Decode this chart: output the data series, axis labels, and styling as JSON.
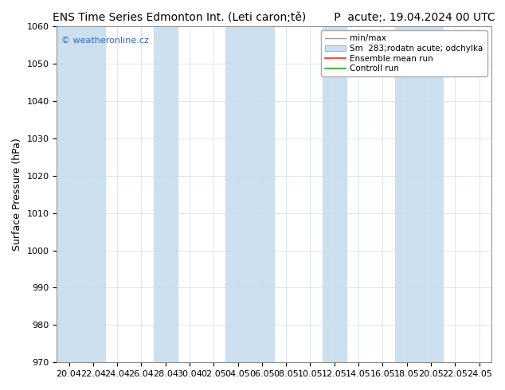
{
  "title": "ENS Time Series Edmonton Int. (Leti caron;tě)        P  acute;. 19.04.2024 00 UTC",
  "ylabel": "Surface Pressure (hPa)",
  "ylim": [
    970,
    1060
  ],
  "yticks": [
    970,
    980,
    990,
    1000,
    1010,
    1020,
    1030,
    1040,
    1050,
    1060
  ],
  "x_labels": [
    "20.04",
    "22.04",
    "24.04",
    "26.04",
    "28.04",
    "30.04",
    "02.05",
    "04.05",
    "06.05",
    "08.05",
    "10.05",
    "12.05",
    "14.05",
    "16.05",
    "18.05",
    "20.05",
    "22.05",
    "24.05"
  ],
  "n_steps": 18,
  "band_color": "#cce0f0",
  "bg_color": "#ffffff",
  "plot_bg_color": "#ffffff",
  "mean_color": "#ff2222",
  "control_color": "#22aa22",
  "watermark": "© weatheronline.cz",
  "watermark_color": "#3366cc",
  "title_fontsize": 10,
  "label_fontsize": 9,
  "tick_fontsize": 8,
  "legend_entries": [
    "min/max",
    "Sm  283;rodatn acute; odchylka",
    "Ensemble mean run",
    "Controll run"
  ],
  "blue_band_indices": [
    0,
    1,
    4,
    7,
    8,
    11,
    14,
    15
  ],
  "hgrid_color": "#ccddee",
  "vgrid_color": "#ccddee"
}
